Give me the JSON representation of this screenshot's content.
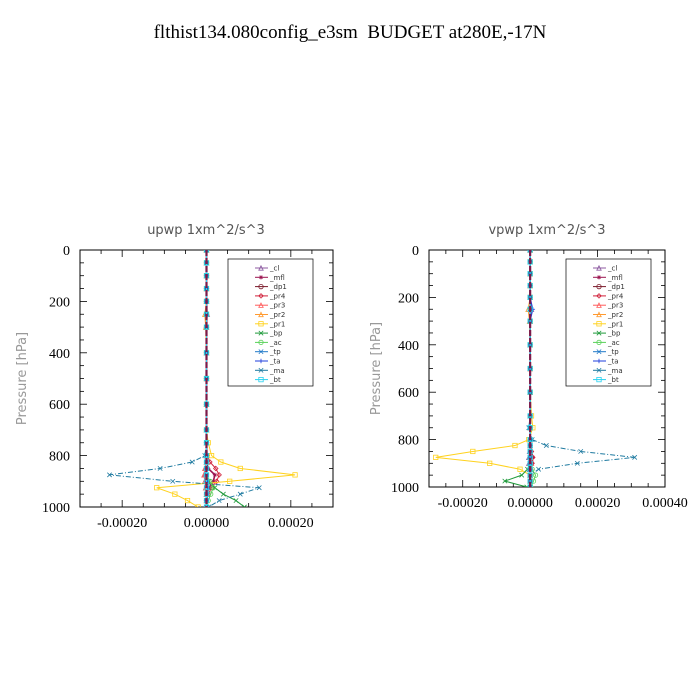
{
  "title": "flthist134.080config_e3sm  BUDGET at280E,-17N",
  "legend_labels": [
    "_cl",
    "_mfl",
    "_dp1",
    "_pr4",
    "_pr3",
    "_pr2",
    "_pr1",
    "_bp",
    "_ac",
    "_tp",
    "_ta",
    "_ma",
    "_bt"
  ],
  "legend_colors": [
    "#8c5aa0",
    "#9b1450",
    "#7a1a2a",
    "#d0203a",
    "#ff5a5a",
    "#ff9a30",
    "#ffd21e",
    "#1e9a3a",
    "#5ad25a",
    "#1e78c8",
    "#1e3cdc",
    "#1e7aa0",
    "#28d2f0"
  ],
  "chart_data": [
    {
      "type": "line",
      "title": "upwp   1xm^2/s^3",
      "ylabel": "Pressure [hPa]",
      "xlim": [
        -0.0003,
        0.0003
      ],
      "ylim": [
        1000,
        0
      ],
      "xticks": [
        "-0.00020",
        "0.00000",
        "0.00020"
      ],
      "xtick_values": [
        -0.0002,
        0.0,
        0.0002
      ],
      "yticks": [
        "0",
        "200",
        "400",
        "600",
        "800",
        "1000"
      ],
      "ytick_values": [
        0,
        200,
        400,
        600,
        800,
        1000
      ],
      "pressure": [
        0,
        50,
        100,
        150,
        200,
        250,
        300,
        400,
        500,
        600,
        700,
        750,
        800,
        825,
        850,
        875,
        900,
        925,
        950,
        975,
        1000
      ],
      "series": [
        {
          "name": "_cl",
          "values": [
            0,
            0,
            0,
            0,
            0,
            2e-06,
            0,
            0,
            0,
            0,
            0,
            0,
            0,
            0,
            -2e-06,
            -4e-06,
            -4e-06,
            -2e-06,
            0,
            0,
            0
          ]
        },
        {
          "name": "_mfl",
          "values": [
            0,
            0,
            0,
            0,
            0,
            0,
            0,
            0,
            0,
            0,
            0,
            0,
            0,
            0,
            4e-06,
            2e-05,
            1.6e-05,
            6e-06,
            0,
            0,
            0
          ]
        },
        {
          "name": "_dp1",
          "values": [
            0,
            0,
            0,
            0,
            0,
            0,
            0,
            0,
            0,
            0,
            0,
            0,
            0,
            0,
            0,
            0,
            0,
            0,
            0,
            0,
            0
          ]
        },
        {
          "name": "_pr4",
          "values": [
            0,
            0,
            0,
            0,
            0,
            0,
            0,
            0,
            0,
            0,
            0,
            0,
            2e-06,
            8e-06,
            2.2e-05,
            3e-05,
            2.4e-05,
            1.2e-05,
            4e-06,
            0,
            0
          ]
        },
        {
          "name": "_pr3",
          "values": [
            0,
            0,
            0,
            0,
            0,
            0,
            0,
            0,
            0,
            0,
            0,
            0,
            0,
            0,
            -4e-06,
            -6e-06,
            -4e-06,
            -2e-06,
            0,
            0,
            0
          ]
        },
        {
          "name": "_pr2",
          "values": [
            0,
            0,
            0,
            0,
            0,
            -4e-06,
            -2e-06,
            0,
            0,
            0,
            0,
            0,
            0,
            0,
            0,
            0,
            0,
            0,
            0,
            0,
            0
          ]
        },
        {
          "name": "_pr1",
          "values": [
            0,
            0,
            0,
            0,
            0,
            0,
            0,
            0,
            0,
            0,
            0,
            4e-06,
            1.2e-05,
            3.4e-05,
            8e-05,
            0.00021,
            5.5e-05,
            -0.000118,
            -7.5e-05,
            -4.5e-05,
            -2e-05
          ]
        },
        {
          "name": "_bp",
          "values": [
            0,
            0,
            0,
            0,
            0,
            0,
            0,
            0,
            0,
            0,
            0,
            0,
            0,
            0,
            0,
            0,
            6e-06,
            2e-05,
            4e-05,
            7e-05,
            9e-05
          ]
        },
        {
          "name": "_ac",
          "values": [
            0,
            0,
            0,
            0,
            0,
            0,
            0,
            0,
            0,
            0,
            0,
            0,
            0,
            0,
            0,
            0,
            8e-06,
            1.6e-05,
            1e-05,
            4e-06,
            0
          ]
        },
        {
          "name": "_tp",
          "values": [
            0,
            0,
            0,
            0,
            0,
            0,
            0,
            0,
            0,
            0,
            0,
            0,
            0,
            0,
            0,
            0,
            2e-06,
            4e-06,
            2e-06,
            0,
            0
          ]
        },
        {
          "name": "_ta",
          "values": [
            0,
            0,
            0,
            0,
            0,
            0,
            0,
            0,
            0,
            0,
            0,
            0,
            0,
            0,
            0,
            0,
            0,
            0,
            0,
            0,
            0
          ]
        },
        {
          "name": "_ma",
          "values": [
            0,
            0,
            0,
            0,
            0,
            0,
            0,
            0,
            0,
            0,
            0,
            0,
            -4e-06,
            -3.4e-05,
            -0.00011,
            -0.00023,
            -8e-05,
            0.000125,
            8e-05,
            3e-05,
            5e-06
          ]
        },
        {
          "name": "_bt",
          "values": [
            0,
            0,
            0,
            0,
            0,
            0,
            0,
            0,
            0,
            0,
            0,
            0,
            0,
            0,
            0,
            0,
            0,
            0,
            0,
            0,
            0
          ]
        }
      ]
    },
    {
      "type": "line",
      "title": "vpwp   1xm^2/s^3",
      "ylabel": "Pressure [hPa]",
      "xlim": [
        -0.0003,
        0.0004
      ],
      "ylim": [
        1000,
        0
      ],
      "xticks": [
        "-0.00020",
        "0.00000",
        "0.00020",
        "0.00040"
      ],
      "xtick_values": [
        -0.0002,
        0.0,
        0.0002,
        0.0004
      ],
      "yticks": [
        "0",
        "200",
        "400",
        "600",
        "800",
        "1000"
      ],
      "ytick_values": [
        0,
        200,
        400,
        600,
        800,
        1000
      ],
      "pressure": [
        0,
        50,
        100,
        150,
        200,
        250,
        300,
        400,
        500,
        600,
        700,
        750,
        800,
        825,
        850,
        875,
        900,
        925,
        950,
        975,
        1000
      ],
      "series": [
        {
          "name": "_cl",
          "values": [
            0,
            0,
            0,
            0,
            0,
            4e-06,
            0,
            0,
            0,
            0,
            0,
            0,
            0,
            0,
            -2e-06,
            -4e-06,
            -4e-06,
            -2e-06,
            0,
            0,
            0
          ]
        },
        {
          "name": "_mfl",
          "values": [
            0,
            0,
            0,
            0,
            0,
            0,
            0,
            0,
            0,
            0,
            0,
            0,
            0,
            0,
            4e-06,
            8e-06,
            6e-06,
            2e-06,
            0,
            0,
            0
          ]
        },
        {
          "name": "_dp1",
          "values": [
            0,
            0,
            0,
            0,
            0,
            0,
            0,
            0,
            0,
            0,
            0,
            0,
            0,
            0,
            0,
            0,
            0,
            0,
            0,
            0,
            0
          ]
        },
        {
          "name": "_pr4",
          "values": [
            0,
            0,
            0,
            0,
            0,
            0,
            0,
            0,
            0,
            0,
            0,
            0,
            0,
            0,
            4e-06,
            8e-06,
            6e-06,
            2e-06,
            0,
            0,
            0
          ]
        },
        {
          "name": "_pr3",
          "values": [
            0,
            0,
            0,
            0,
            0,
            0,
            0,
            0,
            0,
            0,
            0,
            0,
            0,
            0,
            0,
            2e-06,
            4e-06,
            2e-06,
            0,
            0,
            0
          ]
        },
        {
          "name": "_pr2",
          "values": [
            0,
            0,
            0,
            0,
            0,
            -6e-06,
            -2e-06,
            0,
            0,
            0,
            0,
            0,
            0,
            0,
            0,
            0,
            0,
            0,
            0,
            0,
            0
          ]
        },
        {
          "name": "_pr1",
          "values": [
            0,
            0,
            0,
            0,
            0,
            0,
            0,
            0,
            0,
            0,
            4e-06,
            8e-06,
            -4e-06,
            -4.5e-05,
            -0.00017,
            -0.00028,
            -0.00012,
            -3e-05,
            0,
            0,
            0
          ]
        },
        {
          "name": "_bp",
          "values": [
            0,
            0,
            0,
            0,
            0,
            0,
            0,
            0,
            0,
            0,
            0,
            0,
            0,
            0,
            0,
            0,
            0,
            -8e-06,
            -2.5e-05,
            -7.5e-05,
            -1e-05
          ]
        },
        {
          "name": "_ac",
          "values": [
            0,
            0,
            0,
            0,
            0,
            0,
            0,
            0,
            0,
            0,
            0,
            0,
            0,
            0,
            0,
            0,
            0,
            6e-06,
            1.6e-05,
            1e-05,
            2e-06
          ]
        },
        {
          "name": "_tp",
          "values": [
            0,
            0,
            0,
            0,
            0,
            0,
            0,
            0,
            0,
            0,
            0,
            0,
            0,
            0,
            0,
            0,
            0,
            0,
            0,
            0,
            0
          ]
        },
        {
          "name": "_ta",
          "values": [
            0,
            0,
            0,
            0,
            0,
            8e-06,
            0,
            0,
            0,
            0,
            0,
            0,
            0,
            0,
            0,
            0,
            0,
            0,
            0,
            0,
            0
          ]
        },
        {
          "name": "_ma",
          "values": [
            0,
            0,
            0,
            0,
            0,
            0,
            0,
            0,
            0,
            0,
            0,
            -4e-06,
            6e-06,
            4.8e-05,
            0.00015,
            0.00031,
            0.00014,
            2.5e-05,
            0,
            0,
            0
          ]
        },
        {
          "name": "_bt",
          "values": [
            0,
            0,
            0,
            0,
            0,
            0,
            0,
            0,
            0,
            0,
            0,
            0,
            0,
            0,
            0,
            0,
            0,
            0,
            0,
            0,
            0
          ]
        }
      ]
    }
  ]
}
